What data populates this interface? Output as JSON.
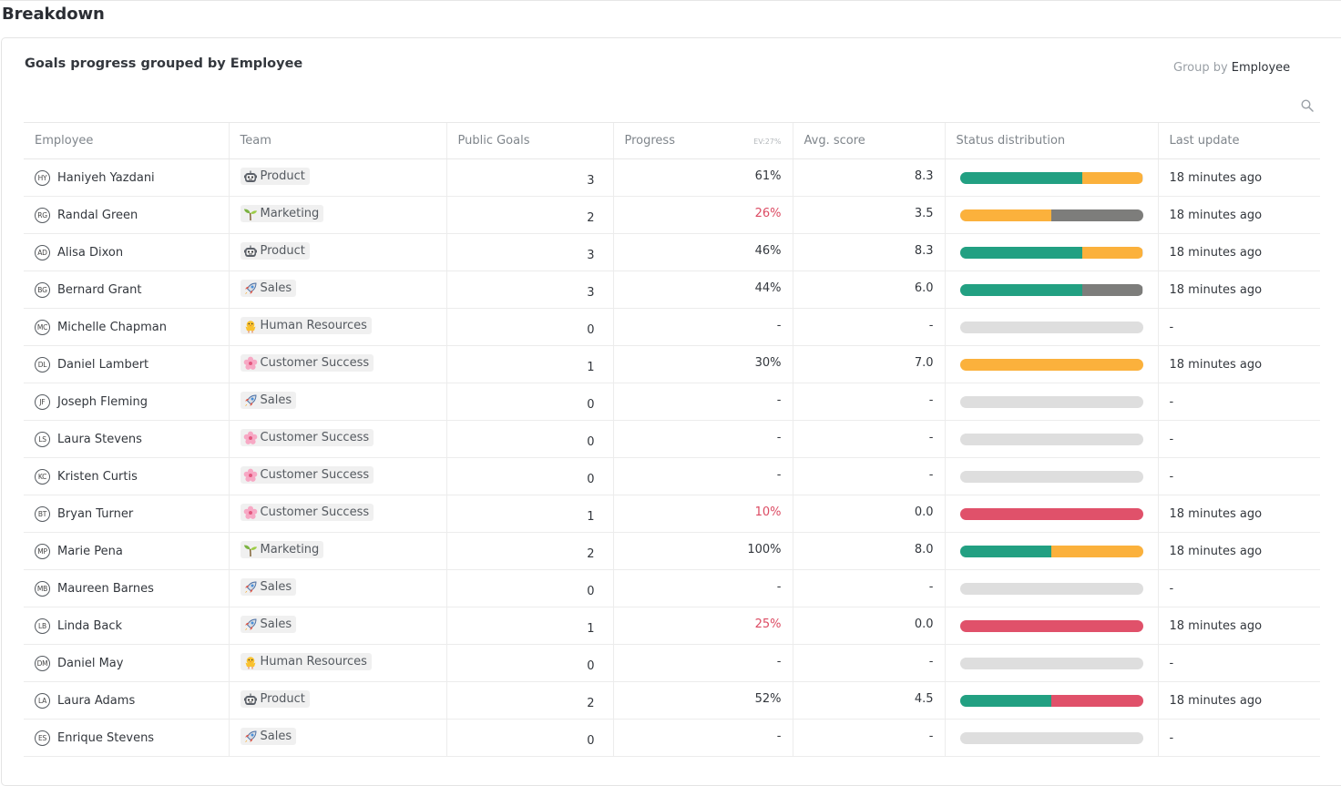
{
  "page": {
    "title": "Breakdown"
  },
  "card": {
    "title": "Goals progress grouped by Employee",
    "group_by_label": "Group by",
    "group_by_value": "Employee"
  },
  "colors": {
    "green": "#22a082",
    "orange": "#fbb13c",
    "gray": "#7d7d7b",
    "red": "#e0516a",
    "empty": "#dedede",
    "negative_text": "#dc4b63"
  },
  "columns": {
    "employee": "Employee",
    "team": "Team",
    "public_goals": "Public Goals",
    "progress": "Progress",
    "progress_ev": "EV:27%",
    "avg_score": "Avg. score",
    "status_distribution": "Status distribution",
    "last_update": "Last update"
  },
  "teams": {
    "Product": {
      "icon": "robot-face-icon"
    },
    "Marketing": {
      "icon": "seedling-icon"
    },
    "Sales": {
      "icon": "rocket-icon"
    },
    "Human Resources": {
      "icon": "hatching-chick-icon"
    },
    "Customer Success": {
      "icon": "cherry-blossom-icon"
    }
  },
  "rows": [
    {
      "initials": "HY",
      "name": "Haniyeh Yazdani",
      "team": "Product",
      "goals": "3",
      "progress": "61%",
      "progress_red": false,
      "score": "8.3",
      "status": [
        {
          "c": "green",
          "p": 67
        },
        {
          "c": "orange",
          "p": 33
        }
      ],
      "updated": "18 minutes ago"
    },
    {
      "initials": "RG",
      "name": "Randal Green",
      "team": "Marketing",
      "goals": "2",
      "progress": "26%",
      "progress_red": true,
      "score": "3.5",
      "status": [
        {
          "c": "orange",
          "p": 50
        },
        {
          "c": "gray",
          "p": 50
        }
      ],
      "updated": "18 minutes ago"
    },
    {
      "initials": "AD",
      "name": "Alisa Dixon",
      "team": "Product",
      "goals": "3",
      "progress": "46%",
      "progress_red": false,
      "score": "8.3",
      "status": [
        {
          "c": "green",
          "p": 67
        },
        {
          "c": "orange",
          "p": 33
        }
      ],
      "updated": "18 minutes ago"
    },
    {
      "initials": "BG",
      "name": "Bernard Grant",
      "team": "Sales",
      "goals": "3",
      "progress": "44%",
      "progress_red": false,
      "score": "6.0",
      "status": [
        {
          "c": "green",
          "p": 67
        },
        {
          "c": "gray",
          "p": 33
        }
      ],
      "updated": "18 minutes ago"
    },
    {
      "initials": "MC",
      "name": "Michelle Chapman",
      "team": "Human Resources",
      "goals": "0",
      "progress": "-",
      "progress_red": false,
      "score": "-",
      "status": [],
      "updated": "-"
    },
    {
      "initials": "DL",
      "name": "Daniel Lambert",
      "team": "Customer Success",
      "goals": "1",
      "progress": "30%",
      "progress_red": false,
      "score": "7.0",
      "status": [
        {
          "c": "orange",
          "p": 100
        }
      ],
      "updated": "18 minutes ago"
    },
    {
      "initials": "JF",
      "name": "Joseph Fleming",
      "team": "Sales",
      "goals": "0",
      "progress": "-",
      "progress_red": false,
      "score": "-",
      "status": [],
      "updated": "-"
    },
    {
      "initials": "LS",
      "name": "Laura Stevens",
      "team": "Customer Success",
      "goals": "0",
      "progress": "-",
      "progress_red": false,
      "score": "-",
      "status": [],
      "updated": "-"
    },
    {
      "initials": "KC",
      "name": "Kristen Curtis",
      "team": "Customer Success",
      "goals": "0",
      "progress": "-",
      "progress_red": false,
      "score": "-",
      "status": [],
      "updated": "-"
    },
    {
      "initials": "BT",
      "name": "Bryan Turner",
      "team": "Customer Success",
      "goals": "1",
      "progress": "10%",
      "progress_red": true,
      "score": "0.0",
      "status": [
        {
          "c": "red",
          "p": 100
        }
      ],
      "updated": "18 minutes ago"
    },
    {
      "initials": "MP",
      "name": "Marie Pena",
      "team": "Marketing",
      "goals": "2",
      "progress": "100%",
      "progress_red": false,
      "score": "8.0",
      "status": [
        {
          "c": "green",
          "p": 50
        },
        {
          "c": "orange",
          "p": 50
        }
      ],
      "updated": "18 minutes ago"
    },
    {
      "initials": "MB",
      "name": "Maureen Barnes",
      "team": "Sales",
      "goals": "0",
      "progress": "-",
      "progress_red": false,
      "score": "-",
      "status": [],
      "updated": "-"
    },
    {
      "initials": "LB",
      "name": "Linda Back",
      "team": "Sales",
      "goals": "1",
      "progress": "25%",
      "progress_red": true,
      "score": "0.0",
      "status": [
        {
          "c": "red",
          "p": 100
        }
      ],
      "updated": "18 minutes ago"
    },
    {
      "initials": "DM",
      "name": "Daniel May",
      "team": "Human Resources",
      "goals": "0",
      "progress": "-",
      "progress_red": false,
      "score": "-",
      "status": [],
      "updated": "-"
    },
    {
      "initials": "LA",
      "name": "Laura Adams",
      "team": "Product",
      "goals": "2",
      "progress": "52%",
      "progress_red": false,
      "score": "4.5",
      "status": [
        {
          "c": "green",
          "p": 50
        },
        {
          "c": "red",
          "p": 50
        }
      ],
      "updated": "18 minutes ago"
    },
    {
      "initials": "ES",
      "name": "Enrique Stevens",
      "team": "Sales",
      "goals": "0",
      "progress": "-",
      "progress_red": false,
      "score": "-",
      "status": [],
      "updated": "-"
    }
  ]
}
